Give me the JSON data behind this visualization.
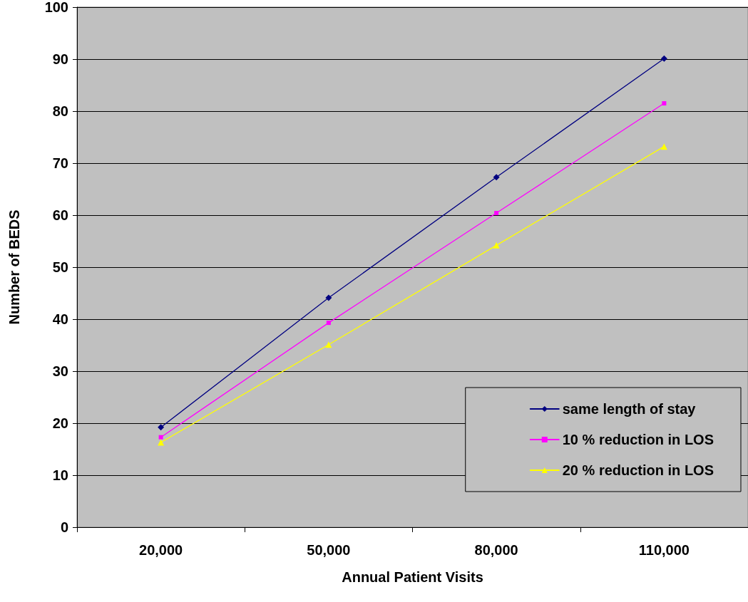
{
  "chart_data": {
    "type": "line",
    "xlabel": "Annual Patient Visits",
    "ylabel": "Number of BEDS",
    "categories": [
      "20,000",
      "50,000",
      "80,000",
      "110,000"
    ],
    "series": [
      {
        "name": "same length of stay",
        "color": "#000080",
        "marker": "diamond",
        "values": [
          19.2,
          44.1,
          67.3,
          90.1
        ]
      },
      {
        "name": "10 % reduction in LOS",
        "color": "#ff00ff",
        "marker": "square",
        "values": [
          17.3,
          39.3,
          60.4,
          81.5
        ]
      },
      {
        "name": "20 % reduction in LOS",
        "color": "#ffff00",
        "marker": "triangle",
        "values": [
          16.3,
          35.1,
          54.2,
          73.2
        ]
      }
    ],
    "ylim": [
      0,
      100
    ],
    "yticks": [
      0,
      10,
      20,
      30,
      40,
      50,
      60,
      70,
      80,
      90,
      100
    ],
    "grid": "y",
    "legend": "bottom right",
    "line_style": "solid"
  }
}
